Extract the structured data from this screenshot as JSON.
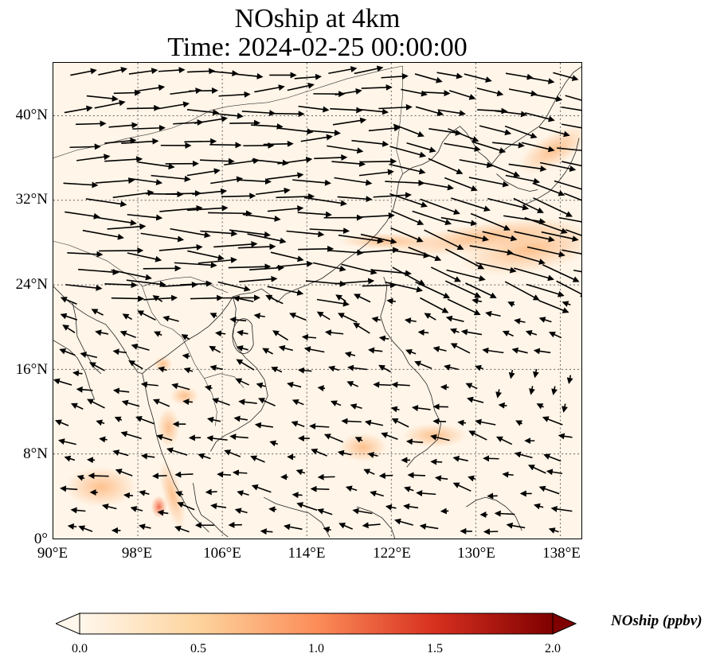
{
  "title": {
    "line1": "NOship at 4km",
    "line2": "Time: 2024-02-25 00:00:00"
  },
  "map": {
    "lon_range": [
      90,
      140
    ],
    "lat_range": [
      0,
      45
    ],
    "gridlines": "dotted",
    "x_ticks": [
      "90°E",
      "98°E",
      "106°E",
      "114°E",
      "122°E",
      "130°E",
      "138°E"
    ],
    "y_ticks": [
      "40°N",
      "32°N",
      "24°N",
      "16°N",
      "8°N",
      "0°"
    ],
    "features": [
      "coastlines",
      "country borders",
      "wind vectors"
    ],
    "prevailing_wind": "westerly in the north, north-easterly south of 20°N"
  },
  "colorbar": {
    "label": "NOship (ppbv)",
    "ticks": [
      "0.0",
      "0.5",
      "1.0",
      "1.5",
      "2.0"
    ],
    "min": 0,
    "max": 2,
    "extend": "both",
    "colormap": "OrRd",
    "colors": [
      "#fff7ec",
      "#fdd49e",
      "#fc8d59",
      "#d7301f",
      "#7f0000"
    ]
  }
}
